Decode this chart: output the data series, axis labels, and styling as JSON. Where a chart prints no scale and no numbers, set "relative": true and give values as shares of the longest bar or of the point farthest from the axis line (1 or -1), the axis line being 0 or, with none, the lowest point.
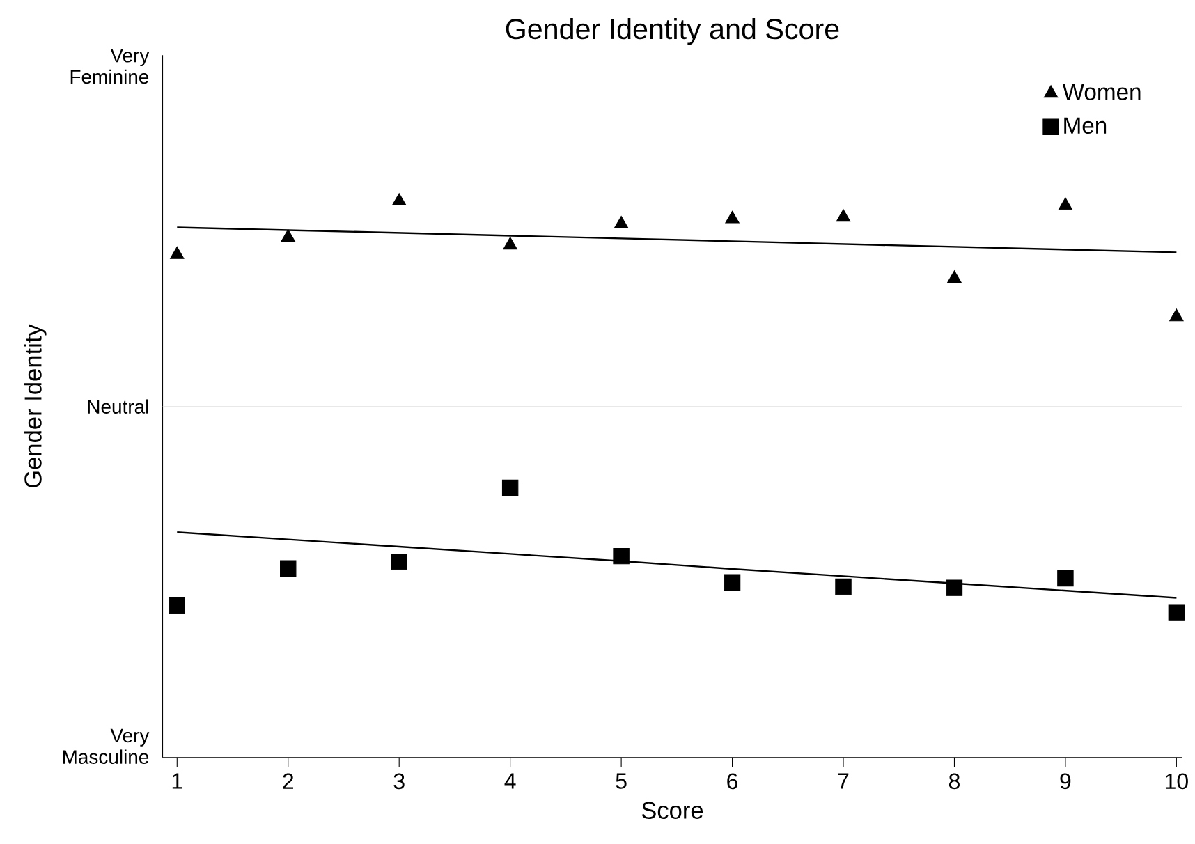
{
  "chart_data": {
    "type": "scatter",
    "title": "Gender Identity and Score",
    "xlabel": "Score",
    "ylabel": "Gender Identity",
    "relative": true,
    "x": [
      1,
      2,
      3,
      4,
      5,
      6,
      7,
      8,
      9,
      10
    ],
    "series": [
      {
        "name": "Women",
        "color": "#000000",
        "marker": "triangle",
        "values": [
          0.904,
          0.935,
          1.0,
          0.921,
          0.959,
          0.968,
          0.971,
          0.861,
          0.992,
          0.792
        ]
      },
      {
        "name": "Men",
        "color": "#000000",
        "marker": "square",
        "values": [
          0.273,
          0.34,
          0.352,
          0.485,
          0.362,
          0.315,
          0.307,
          0.305,
          0.322,
          0.26
        ]
      },
      {
        "type": "line",
        "color": "#000000",
        "values": [
          0.953,
          0.948,
          0.943,
          0.938,
          0.933,
          0.928,
          0.923,
          0.918,
          0.913,
          0.908
        ]
      },
      {
        "type": "line",
        "color": "#000000",
        "values": [
          0.405,
          0.392,
          0.379,
          0.366,
          0.353,
          0.339,
          0.326,
          0.313,
          0.3,
          0.287
        ]
      }
    ],
    "xlim": [
      0.87,
      10.05
    ],
    "xticks": [
      1,
      2,
      3,
      4,
      5,
      6,
      7,
      8,
      9,
      10
    ],
    "annotations": [
      "Very Masculine",
      "Neutral",
      "Very Feminine"
    ],
    "ref_lines": [
      {
        "axis": "y",
        "value": 0.631,
        "color": "#e8e8e8"
      }
    ],
    "legend": "top right",
    "grid": false
  }
}
